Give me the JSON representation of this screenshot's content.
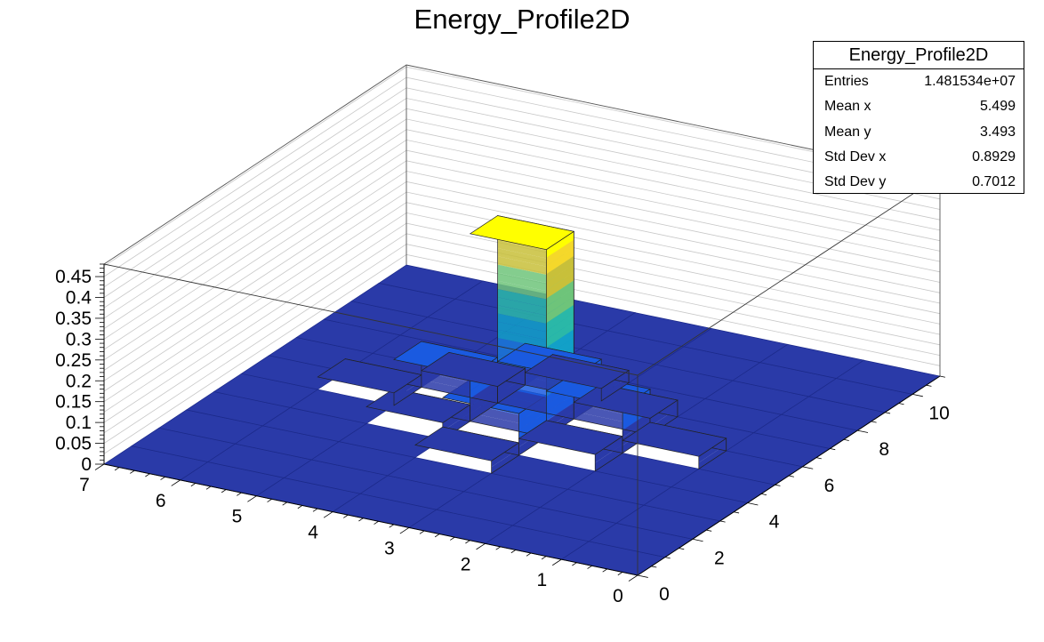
{
  "chart_data": {
    "type": "lego-3d-histogram",
    "title": "Energy_Profile2D",
    "x_axis": {
      "range": [
        0,
        11
      ],
      "tick_labels": [
        "0",
        "2",
        "4",
        "6",
        "8",
        "10"
      ]
    },
    "y_axis": {
      "range": [
        0,
        7
      ],
      "tick_labels": [
        "0",
        "1",
        "2",
        "3",
        "4",
        "5",
        "6",
        "7"
      ]
    },
    "z_axis": {
      "range": [
        0,
        0.48
      ],
      "tick_labels": [
        "0",
        "0.05",
        "0.1",
        "0.15",
        "0.2",
        "0.25",
        "0.3",
        "0.35",
        "0.4",
        "0.45"
      ]
    },
    "grid": true,
    "bins_x": 11,
    "bins_y": 7,
    "bins": [
      {
        "x": 5,
        "y": 3,
        "z": 0.45
      },
      {
        "x": 4,
        "y": 3,
        "z": 0.1
      },
      {
        "x": 6,
        "y": 3,
        "z": 0.1
      },
      {
        "x": 5,
        "y": 2,
        "z": 0.11
      },
      {
        "x": 5,
        "y": 4,
        "z": 0.11
      },
      {
        "x": 4,
        "y": 2,
        "z": 0.04
      },
      {
        "x": 6,
        "y": 2,
        "z": 0.04
      },
      {
        "x": 4,
        "y": 4,
        "z": 0.04
      },
      {
        "x": 6,
        "y": 4,
        "z": 0.04
      },
      {
        "x": 5,
        "y": 1,
        "z": 0.03
      },
      {
        "x": 5,
        "y": 5,
        "z": 0.03
      },
      {
        "x": 3,
        "y": 3,
        "z": 0.03
      },
      {
        "x": 7,
        "y": 3,
        "z": 0.03
      }
    ],
    "palette": [
      "#2a3aa8",
      "#1a5ae0",
      "#1a78d8",
      "#12a0c8",
      "#2ab8a8",
      "#6ec47a",
      "#c8c03a",
      "#f5d82a",
      "#ffff00"
    ],
    "stats_box": {
      "title": "Energy_Profile2D",
      "rows": [
        {
          "label": "Entries",
          "value": "1.481534e+07"
        },
        {
          "label": "Mean x",
          "value": "5.499"
        },
        {
          "label": "Mean y",
          "value": "3.493"
        },
        {
          "label": "Std Dev x",
          "value": "0.8929"
        },
        {
          "label": "Std Dev y",
          "value": "0.7012"
        }
      ]
    }
  }
}
